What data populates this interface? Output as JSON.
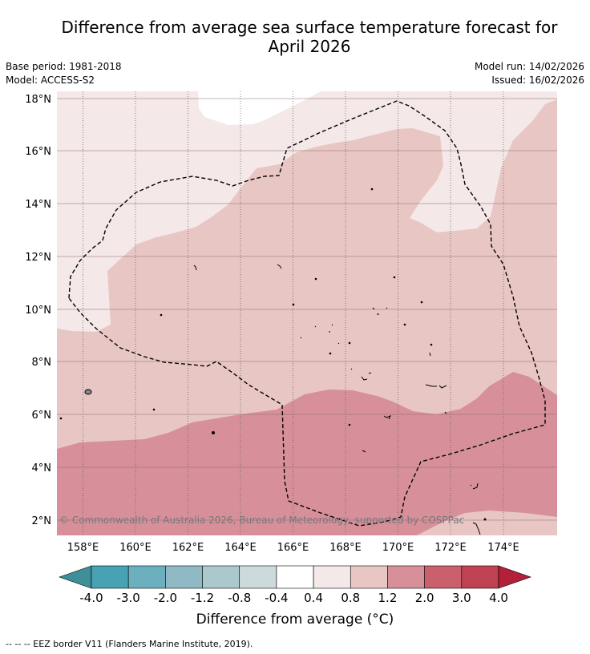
{
  "title_line1": "Difference from average sea surface temperature forecast for",
  "title_line2": "April 2026",
  "base_period": "Base period: 1981-2018",
  "model": "Model: ACCESS-S2",
  "model_run": "Model run: 14/02/2026",
  "issued": "Issued: 16/02/2026",
  "copyright": "© Commonwealth of Australia 2026, Bureau of Meteorology, supported by COSPPac",
  "lon_labels": [
    "158°E",
    "160°E",
    "162°E",
    "164°E",
    "166°E",
    "168°E",
    "170°E",
    "172°E",
    "174°E"
  ],
  "lat_labels": [
    "2°N",
    "4°N",
    "6°N",
    "8°N",
    "10°N",
    "12°N",
    "14°N",
    "16°N",
    "18°N"
  ],
  "colorbar": {
    "title": "Difference from average (°C)",
    "ticks": [
      "-4.0",
      "-3.0",
      "-2.0",
      "-1.2",
      "-0.8",
      "-0.4",
      "0.4",
      "0.8",
      "1.2",
      "2.0",
      "3.0",
      "4.0"
    ],
    "colors": [
      "#3f8f99",
      "#47a3b4",
      "#6cb0bf",
      "#8fb9c4",
      "#abc8cd",
      "#cddadc",
      "#ffffff",
      "#f4e8e8",
      "#e8c6c3",
      "#d7909a",
      "#c9606c",
      "#bf4252",
      "#b32039"
    ]
  },
  "footer": "--  --  -- EEZ border V11 (Flanders Marine Institute, 2019)."
}
